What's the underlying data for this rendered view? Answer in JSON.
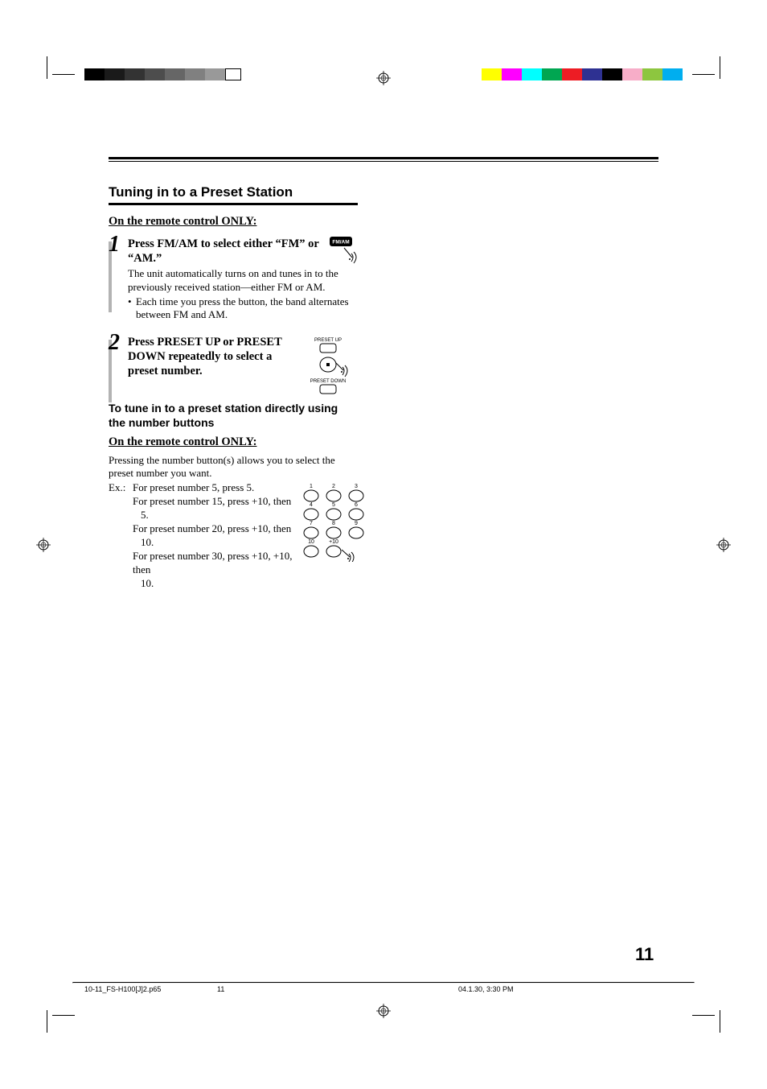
{
  "crop_bar_left_colors": [
    "#000000",
    "#1a1a1a",
    "#333333",
    "#4d4d4d",
    "#666666",
    "#808080",
    "#999999"
  ],
  "crop_bar_right_colors": [
    "#ffff00",
    "#ff00ff",
    "#00ffff",
    "#00a651",
    "#ed1c24",
    "#2e3192",
    "#000000",
    "#f7adc8",
    "#8dc63f",
    "#00aeef"
  ],
  "section_title": "Tuning in to a Preset Station",
  "remote_only": "On the remote control ONLY:",
  "step1": {
    "num": "1",
    "bold": "Press FM/AM to select either “FM” or “AM.”",
    "text": "The unit automatically turns on and tunes in to the previously received station—either FM or AM.",
    "bullet": "Each time you press the button, the band alternates between FM and AM.",
    "fmam_label": "FM/AM"
  },
  "step2": {
    "num": "2",
    "bold": "Press PRESET UP or PRESET DOWN repeatedly to select a preset number.",
    "preset_up_label": "PRESET UP",
    "preset_down_label": "PRESET DOWN"
  },
  "sub_title": "To tune in to a preset station directly using the number buttons",
  "body": "Pressing the number button(s) allows you to select the preset number you want.",
  "ex_label": "Ex.:",
  "ex_lines": [
    "For preset number 5, press 5.",
    "For preset number 15, press +10, then 5.",
    "For preset number 20, press +10, then 10.",
    "For preset number 30, press +10, +10, then 10."
  ],
  "keypad": {
    "labels": [
      "1",
      "2",
      "3",
      "4",
      "5",
      "6",
      "7",
      "8",
      "9",
      "10",
      "+10"
    ]
  },
  "page_number": "11",
  "footer": {
    "file": "10-11_FS-H100[J]2.p65",
    "page": "11",
    "date": "04.1.30, 3:30 PM"
  }
}
